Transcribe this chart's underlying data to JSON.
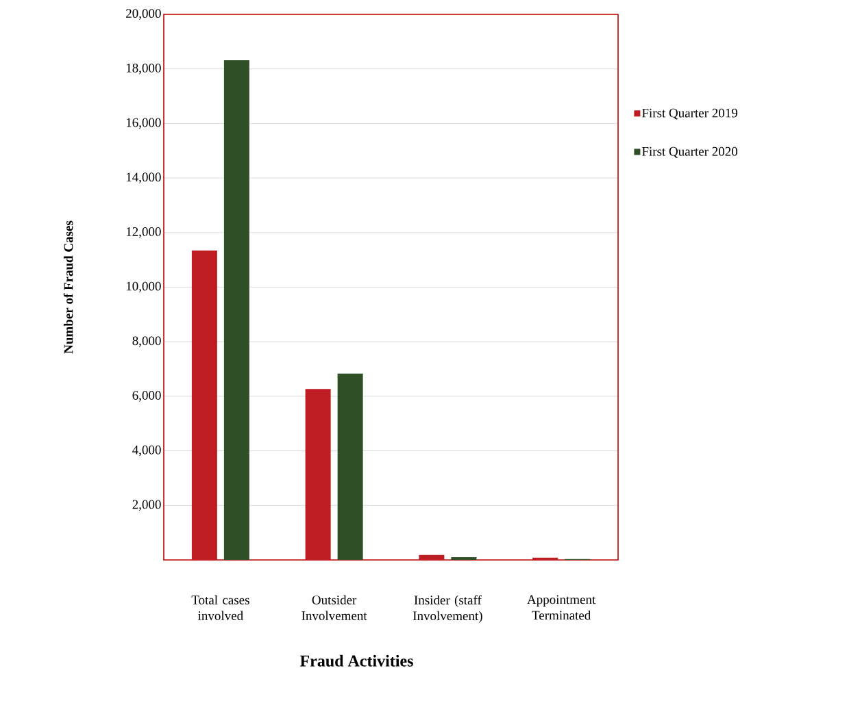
{
  "chart_data": {
    "type": "bar",
    "xlabel": "Fraud Activities",
    "ylabel": "Number of Fraud Cases",
    "categories": [
      "Total cases involved",
      "Outsider Involvement",
      "Insider (staff Involvement)",
      "Appointment Terminated"
    ],
    "series": [
      {
        "name": "First Quarter 2019",
        "color": "#be1e23",
        "values": [
          11340,
          6270,
          180,
          80
        ]
      },
      {
        "name": "First Quarter 2020",
        "color": "#2f4f26",
        "values": [
          18320,
          6830,
          100,
          30
        ]
      }
    ],
    "ylim": [
      0,
      20000
    ],
    "yticks": [
      {
        "value": 2000,
        "label": "2,000"
      },
      {
        "value": 4000,
        "label": "4,000"
      },
      {
        "value": 6000,
        "label": "6,000"
      },
      {
        "value": 8000,
        "label": "8,000"
      },
      {
        "value": 10000,
        "label": "10,000"
      },
      {
        "value": 12000,
        "label": "12,000"
      },
      {
        "value": 14000,
        "label": "14,000"
      },
      {
        "value": 16000,
        "label": "16,000"
      },
      {
        "value": 18000,
        "label": "18,000"
      },
      {
        "value": 20000,
        "label": "20,000"
      }
    ],
    "grid": "y",
    "legend": "right"
  }
}
